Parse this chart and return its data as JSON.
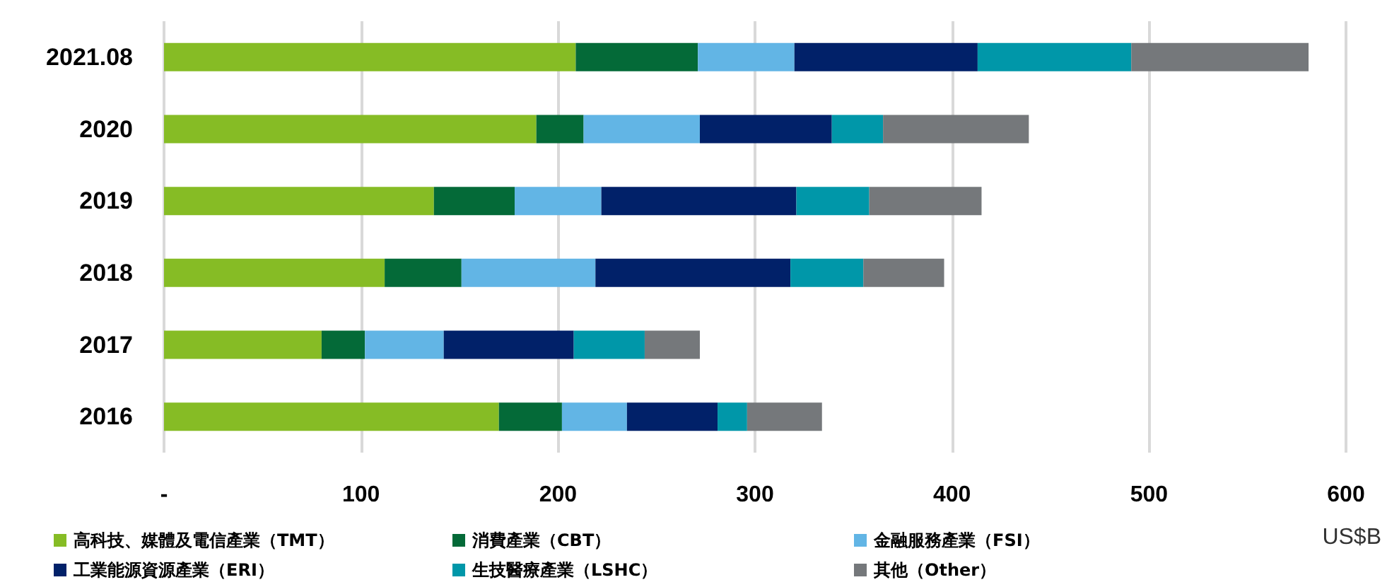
{
  "chart_data": {
    "type": "bar",
    "orientation": "horizontal",
    "stacked": true,
    "xlabel": "US$B",
    "categories": [
      "2021.08",
      "2020",
      "2019",
      "2018",
      "2017",
      "2016"
    ],
    "series": [
      {
        "name": "高科技、媒體及電信產業（TMT）",
        "color": "#86bc25",
        "values": [
          209,
          189,
          137,
          112,
          80,
          170
        ]
      },
      {
        "name": "消費產業（CBT）",
        "color": "#046a38",
        "values": [
          62,
          24,
          41,
          39,
          22,
          32
        ]
      },
      {
        "name": "金融服務產業（FSI）",
        "color": "#62b5e5",
        "values": [
          49,
          59,
          44,
          68,
          40,
          33
        ]
      },
      {
        "name": "工業能源資源產業（ERI）",
        "color": "#012169",
        "values": [
          93,
          67,
          99,
          99,
          66,
          46
        ]
      },
      {
        "name": "生技醫療產業（LSHC）",
        "color": "#0097a9",
        "values": [
          78,
          26,
          37,
          37,
          36,
          15
        ]
      },
      {
        "name": "其他（Other）",
        "color": "#75787b",
        "values": [
          90,
          74,
          57,
          41,
          28,
          38
        ]
      }
    ],
    "xlim": [
      0,
      600
    ],
    "xticks": [
      {
        "value": 0,
        "label": "-"
      },
      100,
      200,
      300,
      400,
      500,
      600
    ],
    "grid": "x",
    "legend": "bottom"
  }
}
